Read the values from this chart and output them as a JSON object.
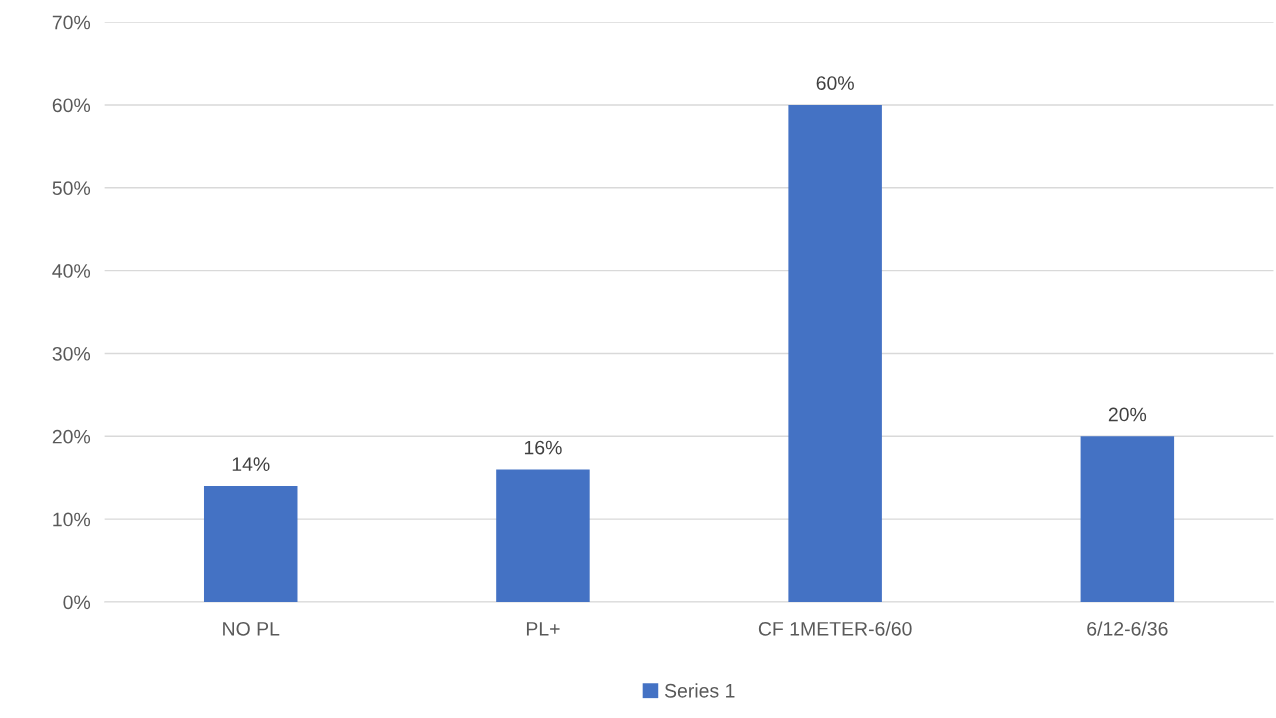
{
  "chart_data": {
    "type": "bar",
    "categories": [
      "NO PL",
      "PL+",
      "CF 1METER-6/60",
      "6/12-6/36"
    ],
    "series": [
      {
        "name": "Series 1",
        "color": "#4472c4",
        "values": [
          14,
          16,
          60,
          20
        ],
        "value_labels": [
          "14%",
          "16%",
          "60%",
          "20%"
        ]
      }
    ],
    "ylim": [
      0,
      70
    ],
    "yticks": [
      {
        "value": 0,
        "label": "0%"
      },
      {
        "value": 10,
        "label": "10%"
      },
      {
        "value": 20,
        "label": "20%"
      },
      {
        "value": 30,
        "label": "30%"
      },
      {
        "value": 40,
        "label": "40%"
      },
      {
        "value": 50,
        "label": "50%"
      },
      {
        "value": 60,
        "label": "60%"
      },
      {
        "value": 70,
        "label": "70%"
      }
    ],
    "grid": "y",
    "legend": "bottom"
  }
}
